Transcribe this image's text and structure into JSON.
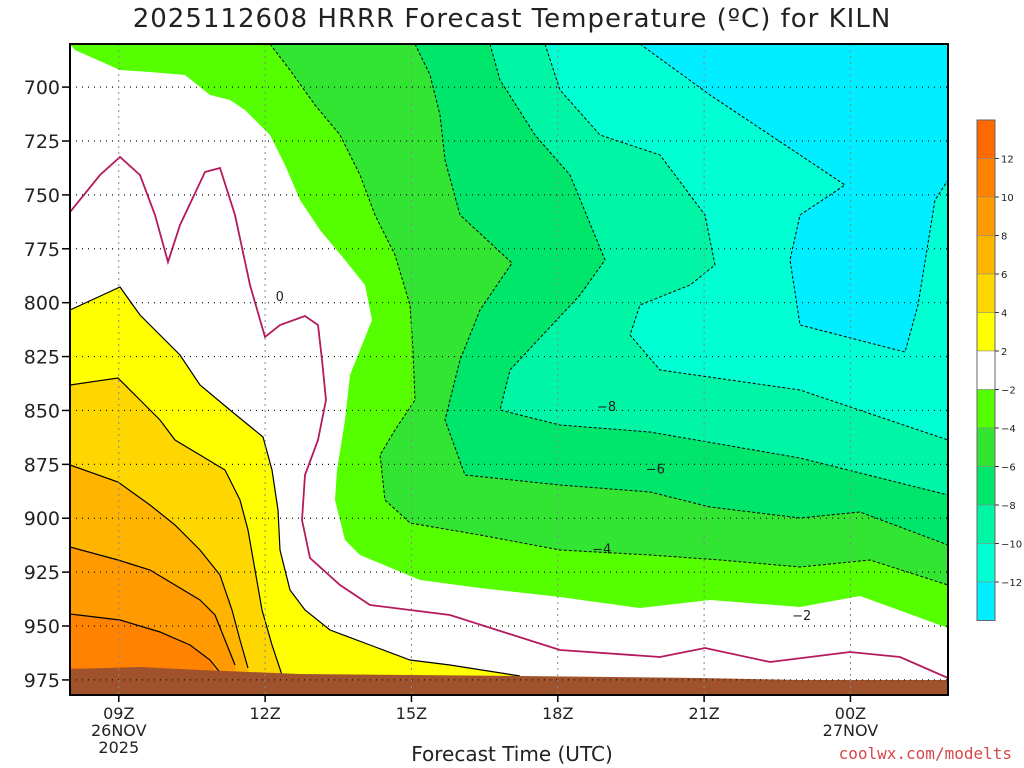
{
  "title": "2025112608 HRRR Forecast Temperature (ºC) for KILN",
  "credit": "coolwx.com/modelts",
  "colors": {
    "ground": "#a0522d",
    "freezing_line": "#b5195e",
    "frame": "#000000"
  },
  "chart_data": {
    "type": "heatmap",
    "title": "2025112608 HRRR Forecast Temperature (ºC) for KILN",
    "xlabel": "Forecast Time (UTC)",
    "ylabel": "",
    "x_start": "2025-11-26T08Z",
    "x_end": "2025-11-27T02Z",
    "y_range_hPa": [
      680,
      982
    ],
    "y_axis": "pressure (hPa), decreasing upward",
    "x_ticks": [
      {
        "hour": 9,
        "label": "09Z",
        "sub1": "26NOV",
        "sub2": "2025"
      },
      {
        "hour": 12,
        "label": "12Z",
        "sub1": "",
        "sub2": ""
      },
      {
        "hour": 15,
        "label": "15Z",
        "sub1": "",
        "sub2": ""
      },
      {
        "hour": 18,
        "label": "18Z",
        "sub1": "",
        "sub2": ""
      },
      {
        "hour": 21,
        "label": "21Z",
        "sub1": "",
        "sub2": ""
      },
      {
        "hour": 24,
        "label": "00Z",
        "sub1": "27NOV",
        "sub2": ""
      }
    ],
    "y_ticks": [
      700,
      725,
      750,
      775,
      800,
      825,
      850,
      875,
      900,
      925,
      950,
      975
    ],
    "grid": true,
    "legend": "right (vertical color bar)",
    "colorbar": {
      "tick_labels": [
        "12",
        "10",
        "8",
        "6",
        "4",
        "2",
        "−2",
        "−4",
        "−6",
        "−8",
        "−10",
        "−12"
      ],
      "bins": [
        {
          "range": [
            12,
            14
          ],
          "color": "#ff6a00"
        },
        {
          "range": [
            10,
            12
          ],
          "color": "#ff8200"
        },
        {
          "range": [
            8,
            10
          ],
          "color": "#ff9a00"
        },
        {
          "range": [
            6,
            8
          ],
          "color": "#ffb400"
        },
        {
          "range": [
            4,
            6
          ],
          "color": "#ffd700"
        },
        {
          "range": [
            2,
            4
          ],
          "color": "#ffff00"
        },
        {
          "range": [
            -2,
            2
          ],
          "color": "#ffffff"
        },
        {
          "range": [
            -4,
            -2
          ],
          "color": "#55ff00"
        },
        {
          "range": [
            -6,
            -4
          ],
          "color": "#33e533"
        },
        {
          "range": [
            -8,
            -6
          ],
          "color": "#00e66b"
        },
        {
          "range": [
            -10,
            -8
          ],
          "color": "#00f5a5"
        },
        {
          "range": [
            -12,
            -10
          ],
          "color": "#00ffd2"
        },
        {
          "range": [
            -14,
            -12
          ],
          "color": "#00eeff"
        }
      ]
    },
    "contour_labels": [
      {
        "text": "0",
        "hour": 12.3,
        "p": 797
      },
      {
        "text": "−8",
        "hour": 19.0,
        "p": 848
      },
      {
        "text": "−6",
        "hour": 20.0,
        "p": 877
      },
      {
        "text": "−4",
        "hour": 18.9,
        "p": 914
      },
      {
        "text": "−2",
        "hour": 23.0,
        "p": 945
      }
    ],
    "surface_pressure_hPa": 976
  }
}
